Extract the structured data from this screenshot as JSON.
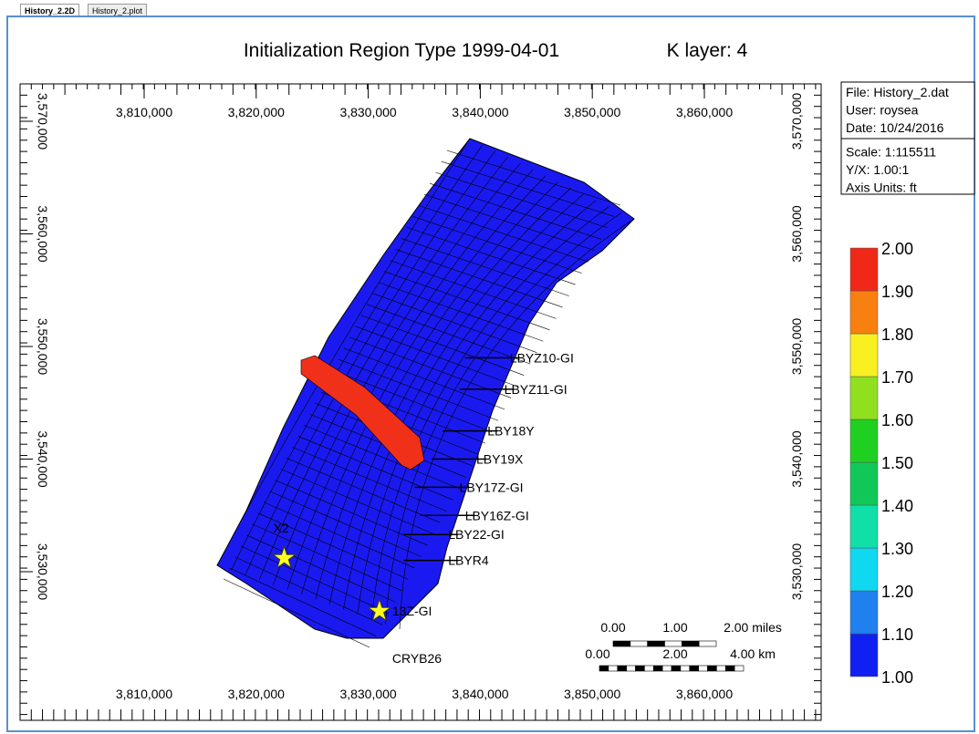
{
  "tabs": [
    "History_2.2D",
    "History_2.plot"
  ],
  "title": "Initialization Region Type 1999-04-01",
  "layer": "K layer: 4",
  "x_axis": {
    "ticks": [
      {
        "value": 3810000,
        "label": "3,810,000"
      },
      {
        "value": 3820000,
        "label": "3,820,000"
      },
      {
        "value": 3830000,
        "label": "3,830,000"
      },
      {
        "value": 3840000,
        "label": "3,840,000"
      },
      {
        "value": 3850000,
        "label": "3,850,000"
      },
      {
        "value": 3860000,
        "label": "3,860,000"
      }
    ]
  },
  "y_axis": {
    "ticks": [
      {
        "value": 3530000,
        "label": "3,530,000"
      },
      {
        "value": 3540000,
        "label": "3,540,000"
      },
      {
        "value": 3550000,
        "label": "3,550,000"
      },
      {
        "value": 3560000,
        "label": "3,560,000"
      },
      {
        "value": 3570000,
        "label": "3,570,000"
      }
    ]
  },
  "info": [
    "File: History_2.dat",
    "User:  roysea",
    "Date: 10/24/2016",
    "Scale: 1:115511",
    "Y/X: 1.00:1",
    "Axis Units: ft"
  ],
  "legend": {
    "levels": [
      {
        "value": 1.0,
        "label": "1.00"
      },
      {
        "value": 1.1,
        "label": "1.10"
      },
      {
        "value": 1.2,
        "label": "1.20"
      },
      {
        "value": 1.3,
        "label": "1.30"
      },
      {
        "value": 1.4,
        "label": "1.40"
      },
      {
        "value": 1.5,
        "label": "1.50"
      },
      {
        "value": 1.6,
        "label": "1.60"
      },
      {
        "value": 1.7,
        "label": "1.70"
      },
      {
        "value": 1.8,
        "label": "1.80"
      },
      {
        "value": 1.9,
        "label": "1.90"
      },
      {
        "value": 2.0,
        "label": "2.00"
      }
    ],
    "colors": [
      "#1020f0",
      "#1f80ee",
      "#10d8f0",
      "#10e0a8",
      "#10c858",
      "#20d020",
      "#90e020",
      "#f8f020",
      "#f88010",
      "#f02818"
    ]
  },
  "scale_bar": {
    "miles": [
      "0.00",
      "1.00",
      "2.00 miles"
    ],
    "km": [
      "0.00",
      "2.00",
      "4.00 km"
    ]
  },
  "wells": [
    {
      "label": "X2",
      "x": 3822500,
      "y": 3531200
    },
    {
      "label": "13Z-GI",
      "x": 3831000,
      "y": 3526500
    },
    {
      "label": "CRYB26",
      "x": 3831000,
      "y": 3522300
    },
    {
      "label": "LBYZ10-GI",
      "x": 3841500,
      "y": 3549000
    },
    {
      "label": "LBYZ11-GI",
      "x": 3841000,
      "y": 3546200
    },
    {
      "label": "LBY18Y",
      "x": 3839500,
      "y": 3542500
    },
    {
      "label": "LBY19X",
      "x": 3838500,
      "y": 3540000
    },
    {
      "label": "LBY17Z-GI",
      "x": 3837000,
      "y": 3537500
    },
    {
      "label": "LBY16Z-GI",
      "x": 3837500,
      "y": 3535000
    },
    {
      "label": "LBY22-GI",
      "x": 3836000,
      "y": 3533300
    },
    {
      "label": "LBYR4",
      "x": 3836000,
      "y": 3531000
    }
  ]
}
